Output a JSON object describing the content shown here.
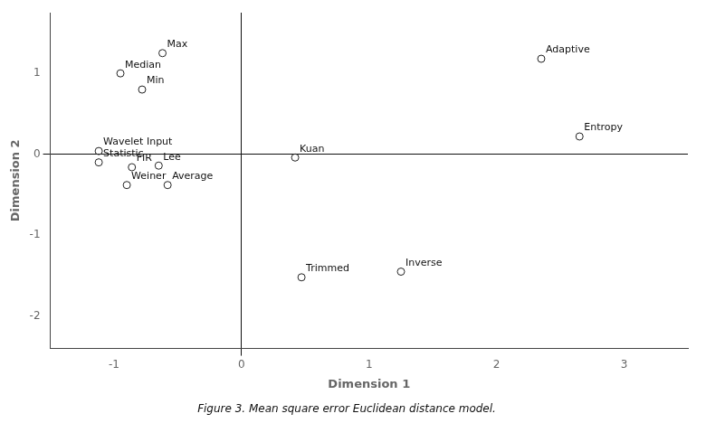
{
  "chart_data": {
    "type": "scatter",
    "caption": "Figure 3. Mean square error Euclidean distance model.",
    "xlabel": "Dimension 1",
    "ylabel": "Dimension 2",
    "labels": [
      "Max",
      "Median",
      "Min",
      "Adaptive",
      "Entropy",
      "Kuan",
      "Wavelet Input",
      "Statistic",
      "FIR",
      "Lee",
      "Weiner",
      "Average",
      "Trimmed",
      "Inverse"
    ],
    "x": [
      -0.62,
      -0.95,
      -0.78,
      2.35,
      2.65,
      0.42,
      -1.12,
      -1.12,
      -0.86,
      -0.65,
      -0.9,
      -0.58,
      0.47,
      1.25
    ],
    "values": [
      1.25,
      1.0,
      0.8,
      1.18,
      0.22,
      -0.04,
      0.04,
      -0.1,
      -0.16,
      -0.14,
      -0.38,
      -0.38,
      -1.52,
      -1.45
    ],
    "xlim": [
      -1.5,
      3.5
    ],
    "ylim": [
      -2.4,
      1.75
    ],
    "xticks": [
      -1,
      0,
      1,
      2,
      3
    ],
    "yticks": [
      -2,
      -1,
      0,
      1
    ],
    "marker": "circle",
    "color": "#222222",
    "grid": false
  }
}
